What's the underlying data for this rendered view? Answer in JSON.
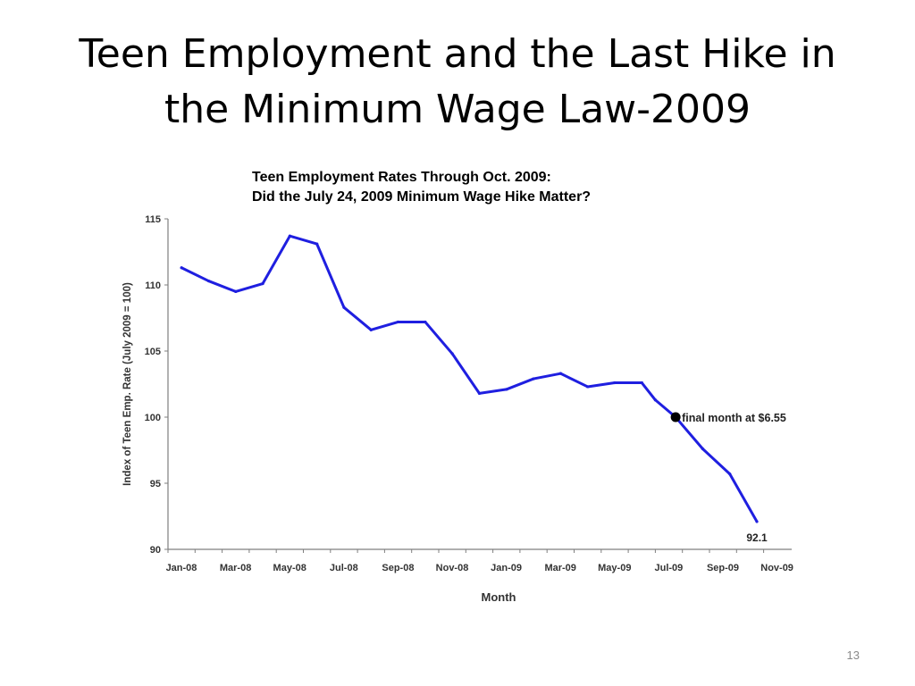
{
  "slide": {
    "title_line1": "Teen Employment and the Last Hike in",
    "title_line2": "the Minimum Wage Law-2009",
    "number": "13"
  },
  "chart_data": {
    "type": "line",
    "title_line1": "Teen Employment Rates Through Oct. 2009:",
    "title_line2": "Did the July 24, 2009 Minimum Wage Hike Matter?",
    "xlabel": "Month",
    "ylabel": "Index of Teen Emp. Rate (July 2009 = 100)",
    "ylim": [
      90,
      115
    ],
    "yticks": [
      90,
      95,
      100,
      105,
      110,
      115
    ],
    "xtick_labels": [
      "Jan-08",
      "Mar-08",
      "May-08",
      "Jul-08",
      "Sep-08",
      "Nov-08",
      "Jan-09",
      "Mar-09",
      "May-09",
      "Jul-09",
      "Sep-09",
      "Nov-09"
    ],
    "months": [
      "Jan-08",
      "Feb-08",
      "Mar-08",
      "Apr-08",
      "May-08",
      "Jun-08",
      "Jul-08",
      "Aug-08",
      "Sep-08",
      "Oct-08",
      "Nov-08",
      "Dec-08",
      "Jan-09",
      "Feb-09",
      "Mar-09",
      "Apr-09",
      "May-09",
      "Jun-09",
      "Jul-09",
      "Aug-09",
      "Sep-09",
      "Oct-09"
    ],
    "x_range": [
      "Jan-08",
      "Nov-09"
    ],
    "series": [
      {
        "values": [
          111.3,
          110.3,
          109.5,
          110.1,
          113.7,
          113.1,
          108.3,
          106.6,
          107.2,
          107.2,
          104.8,
          101.8,
          102.1,
          102.9,
          103.3,
          102.3,
          102.6,
          102.6,
          101.3,
          100.0,
          97.6,
          95.7,
          92.1
        ]
      }
    ],
    "x_points": [
      "Jan-08",
      "Feb-08",
      "Mar-08",
      "Apr-08",
      "May-08",
      "Jun-08",
      "Jul-08",
      "Aug-08",
      "Sep-08",
      "Oct-08",
      "Nov-08",
      "Dec-08",
      "Jan-09",
      "Feb-09",
      "Mar-09",
      "Apr-09",
      "May-09",
      "Jun-09",
      "Jul-09",
      "Jul-09",
      "Aug-09",
      "Sep-09",
      "Oct-09"
    ],
    "marker": {
      "x": "Jul-09",
      "value": 100.0,
      "label": "final month at $6.55"
    },
    "end_label": "92.1",
    "grid": false,
    "colors": {
      "line": "#1f1fe0",
      "marker": "#000000",
      "axis": "#7f7f7f"
    }
  }
}
